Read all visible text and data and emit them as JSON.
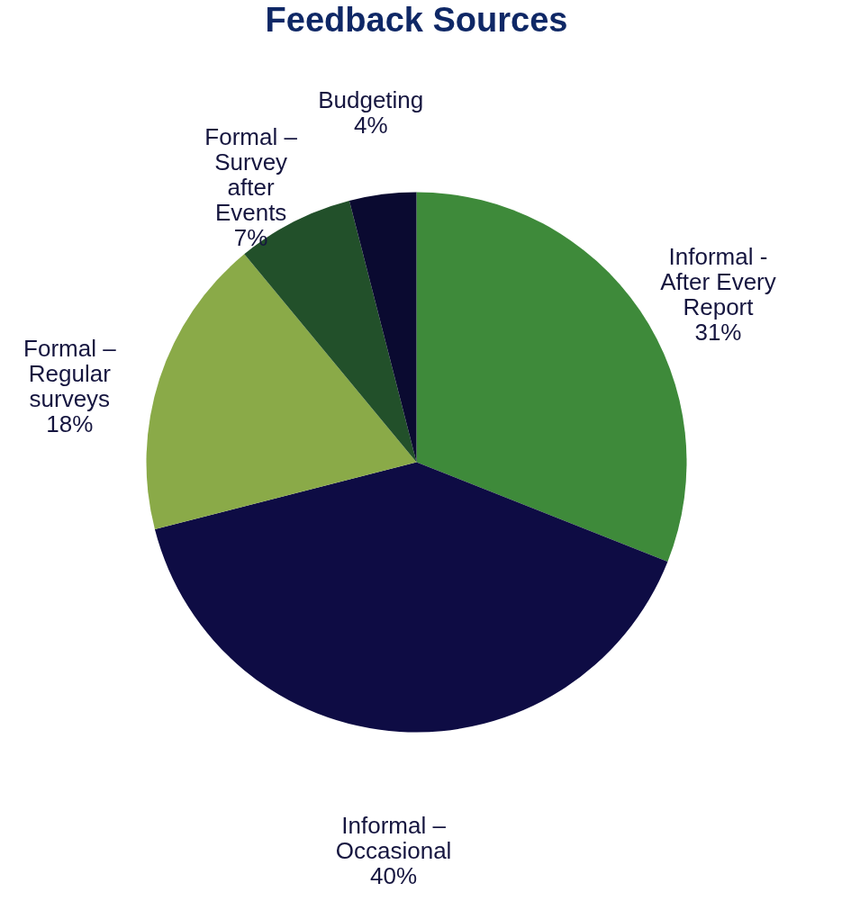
{
  "chart_data": {
    "type": "pie",
    "title": "Feedback Sources",
    "categories": [
      "Informal  -\nAfter Every\nReport",
      "Informal –\nOccasional",
      "Formal –\nRegular\nsurveys",
      "Formal –\nSurvey\nafter\nEvents",
      "Budgeting"
    ],
    "values": [
      31,
      40,
      18,
      7,
      4
    ],
    "value_labels": [
      "31%",
      "40%",
      "18%",
      "7%",
      "4%"
    ],
    "colors": [
      "#3e8a3a",
      "#0e0c44",
      "#8aaa48",
      "#22502a",
      "#0a0a30"
    ],
    "legend": false
  }
}
